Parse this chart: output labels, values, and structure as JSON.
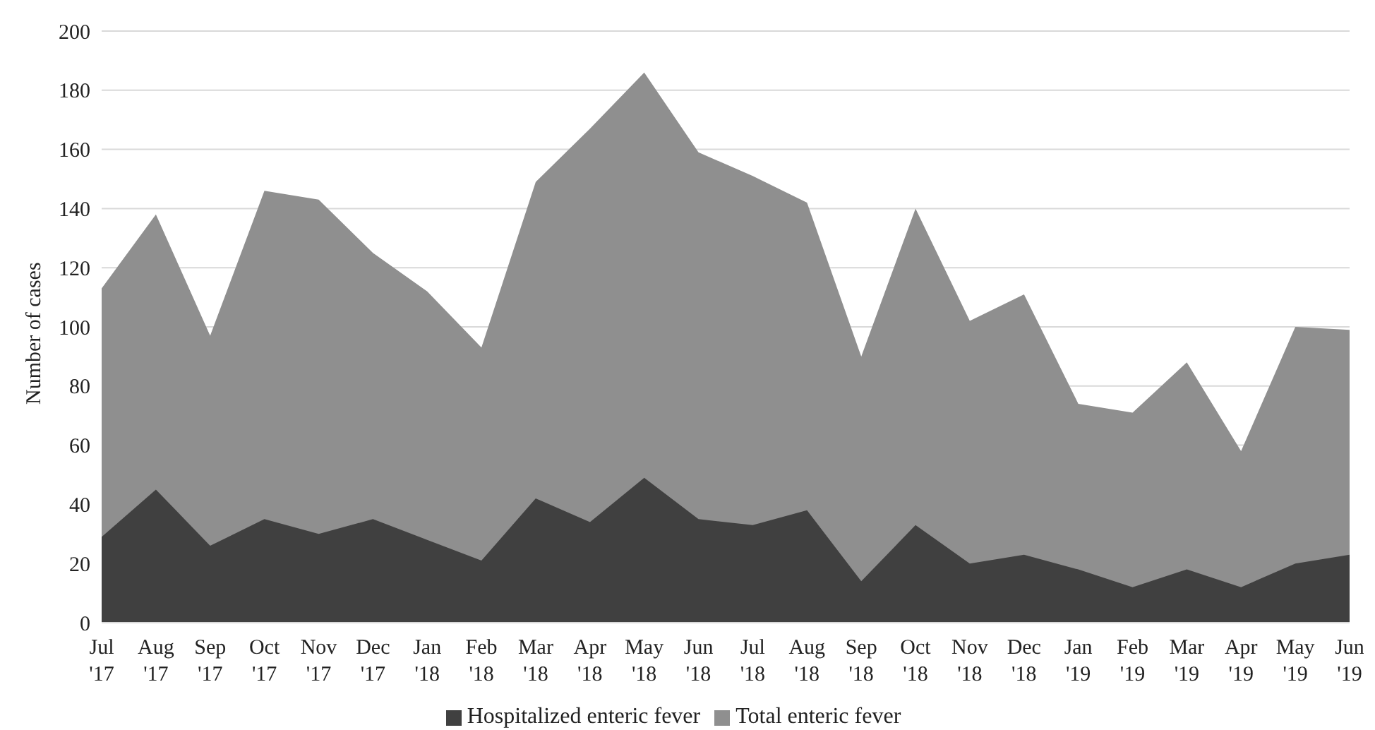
{
  "chart_data": {
    "type": "area",
    "ylabel": "Number of cases",
    "categories": [
      "Jul '17",
      "Aug '17",
      "Sep '17",
      "Oct '17",
      "Nov '17",
      "Dec '17",
      "Jan '18",
      "Feb '18",
      "Mar '18",
      "Apr '18",
      "May '18",
      "Jun '18",
      "Jul '18",
      "Aug '18",
      "Sep '18",
      "Oct '18",
      "Nov '18",
      "Dec '18",
      "Jan '19",
      "Feb '19",
      "Mar '19",
      "Apr '19",
      "May '19",
      "Jun '19"
    ],
    "series": [
      {
        "name": "Total enteric fever",
        "color": "#8f8f8f",
        "values": [
          113,
          138,
          97,
          146,
          143,
          125,
          112,
          93,
          149,
          167,
          186,
          159,
          151,
          142,
          90,
          140,
          102,
          111,
          74,
          71,
          88,
          58,
          100,
          99
        ]
      },
      {
        "name": "Hospitalized enteric fever",
        "color": "#404040",
        "values": [
          29,
          45,
          26,
          35,
          30,
          35,
          28,
          21,
          42,
          34,
          49,
          35,
          33,
          38,
          14,
          33,
          20,
          23,
          18,
          12,
          18,
          12,
          20,
          23
        ]
      }
    ],
    "ylim": [
      0,
      200
    ],
    "yticks": [
      0,
      20,
      40,
      60,
      80,
      100,
      120,
      140,
      160,
      180,
      200
    ],
    "grid": "y",
    "legend": "bottom"
  }
}
